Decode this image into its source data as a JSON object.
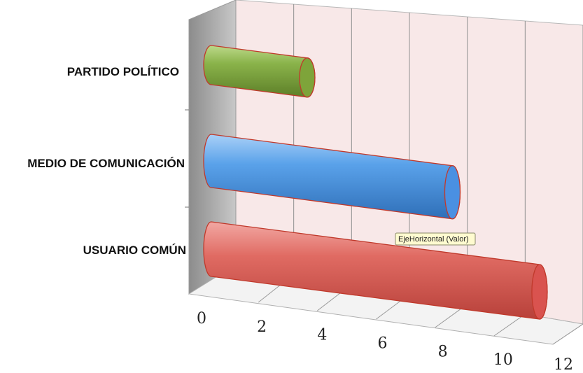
{
  "chart_data": {
    "type": "bar",
    "orientation": "horizontal",
    "style": "3d-cylinder",
    "categories": [
      "USUARIO COMÚN",
      "MEDIO DE COMUNICACIÓN",
      "PARTIDO POLÍTICO"
    ],
    "values": [
      11.3,
      8.3,
      3.3
    ],
    "colors": [
      "#d9534f",
      "#4a90e2",
      "#7ea43a"
    ],
    "xlim": [
      0,
      12
    ],
    "x_ticks": [
      "0",
      "2",
      "4",
      "6",
      "8",
      "10",
      "12"
    ],
    "grid": true,
    "tooltip": "EjeHorizontal (Valor)"
  }
}
